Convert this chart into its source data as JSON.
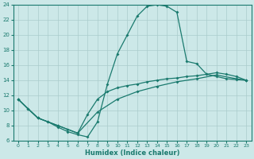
{
  "xlabel": "Humidex (Indice chaleur)",
  "background_color": "#cce8e8",
  "line_color": "#1a7a6e",
  "grid_color": "#aacccc",
  "xlim": [
    -0.5,
    23.5
  ],
  "ylim": [
    6,
    24
  ],
  "xticks": [
    0,
    1,
    2,
    3,
    4,
    5,
    6,
    7,
    8,
    9,
    10,
    11,
    12,
    13,
    14,
    15,
    16,
    17,
    18,
    19,
    20,
    21,
    22,
    23
  ],
  "yticks": [
    6,
    8,
    10,
    12,
    14,
    16,
    18,
    20,
    22,
    24
  ],
  "lines": [
    {
      "x": [
        0,
        1,
        2,
        3,
        4,
        5,
        6,
        7,
        8,
        9,
        10,
        11,
        12,
        13,
        14,
        15,
        16,
        17,
        18,
        19,
        20,
        21,
        22,
        23
      ],
      "y": [
        11.5,
        10.2,
        9.0,
        8.5,
        7.8,
        7.2,
        6.8,
        6.5,
        8.5,
        13.5,
        17.5,
        20.0,
        22.5,
        23.8,
        24.0,
        23.8,
        23.0,
        16.5,
        16.2,
        14.8,
        14.5,
        14.2,
        14.1,
        14.0
      ]
    },
    {
      "x": [
        0,
        1,
        2,
        3,
        4,
        5,
        6,
        7,
        8,
        9,
        10,
        11,
        12,
        13,
        14,
        15,
        16,
        17,
        18,
        19,
        20,
        21,
        22,
        23
      ],
      "y": [
        11.5,
        10.2,
        9.0,
        8.5,
        8.0,
        7.5,
        7.0,
        9.5,
        11.5,
        12.5,
        13.0,
        13.3,
        13.5,
        13.8,
        14.0,
        14.2,
        14.3,
        14.5,
        14.6,
        14.8,
        15.0,
        14.8,
        14.5,
        14.0
      ]
    },
    {
      "x": [
        0,
        2,
        4,
        6,
        8,
        10,
        12,
        14,
        16,
        18,
        20,
        22,
        23
      ],
      "y": [
        11.5,
        9.0,
        8.0,
        7.0,
        9.8,
        11.5,
        12.5,
        13.2,
        13.8,
        14.2,
        14.7,
        14.2,
        14.0
      ]
    }
  ]
}
